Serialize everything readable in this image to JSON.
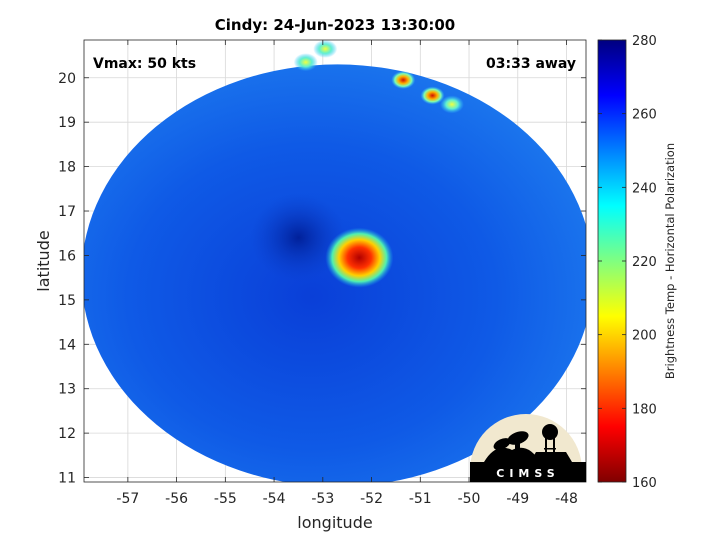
{
  "chart_data": {
    "type": "heatmap",
    "title": "Cindy: 24-Jun-2023 13:30:00",
    "xlabel": "longitude",
    "ylabel": "latitude",
    "xlim": [
      -57.9,
      -47.6
    ],
    "ylim": [
      10.9,
      20.85
    ],
    "x_ticks": [
      -57,
      -56,
      -55,
      -54,
      -53,
      -52,
      -51,
      -50,
      -49,
      -48
    ],
    "y_ticks": [
      11,
      12,
      13,
      14,
      15,
      16,
      17,
      18,
      19,
      20
    ],
    "grid": true,
    "annotations": {
      "vmax": "Vmax: 50 kts",
      "away": "03:33 away"
    },
    "colorbar": {
      "label": "Brightness Temp - Horizontal Polarization",
      "range": [
        160,
        280
      ],
      "ticks": [
        160,
        180,
        200,
        220,
        240,
        260,
        280
      ],
      "colormap": "jet",
      "colors": [
        "#800000",
        "#ff0000",
        "#ff8000",
        "#ffff00",
        "#80ff80",
        "#00ffff",
        "#0080ff",
        "#0000ff",
        "#000080"
      ]
    },
    "swath": {
      "center": [
        -52.7,
        15.55
      ],
      "radius_lon": 5.25,
      "radius_lat": 4.75,
      "background_value": 262
    },
    "features": [
      {
        "name": "eye",
        "lon": -53.5,
        "lat": 16.4,
        "value": 270
      },
      {
        "name": "convective-core",
        "lon": -52.25,
        "lat": 15.95,
        "value": 185
      },
      {
        "name": "north-convection-1",
        "lon": -51.35,
        "lat": 19.95,
        "value": 190
      },
      {
        "name": "north-convection-2",
        "lon": -50.75,
        "lat": 19.6,
        "value": 195
      },
      {
        "name": "north-convection-3",
        "lon": -52.95,
        "lat": 20.65,
        "value": 215
      },
      {
        "name": "north-convection-4",
        "lon": -50.35,
        "lat": 19.4,
        "value": 215
      },
      {
        "name": "north-convection-5",
        "lon": -53.35,
        "lat": 20.35,
        "value": 220
      }
    ]
  },
  "logo": {
    "text": "CIMSS"
  }
}
